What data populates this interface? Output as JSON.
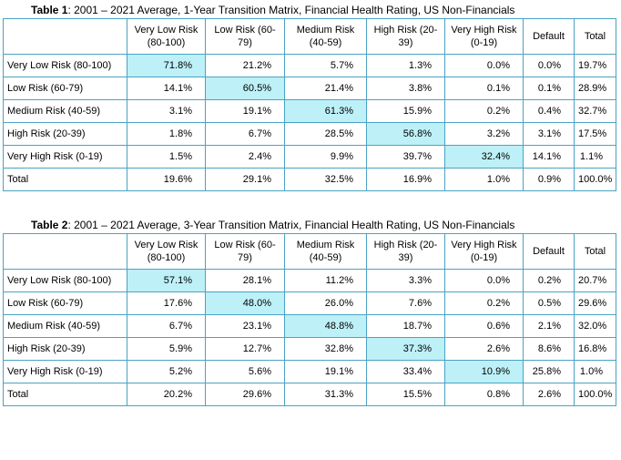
{
  "tables": [
    {
      "caption_prefix": "Table 1",
      "caption_text": ": 2001 – 2021 Average, 1-Year Transition Matrix, Financial Health Rating, US Non-Financials",
      "columns": [
        "",
        "Very Low Risk (80-100)",
        "Low Risk (60-79)",
        "Medium Risk (40-59)",
        "High Risk (20-39)",
        "Very High Risk (0-19)",
        "Default",
        "Total"
      ],
      "rows": [
        [
          "Very Low Risk (80-100)",
          "71.8%",
          "21.2%",
          "5.7%",
          "1.3%",
          "0.0%",
          "0.0%",
          "19.7%"
        ],
        [
          "Low Risk (60-79)",
          "14.1%",
          "60.5%",
          "21.4%",
          "3.8%",
          "0.1%",
          "0.1%",
          "28.9%"
        ],
        [
          "Medium Risk (40-59)",
          "3.1%",
          "19.1%",
          "61.3%",
          "15.9%",
          "0.2%",
          "0.4%",
          "32.7%"
        ],
        [
          "High Risk (20-39)",
          "1.8%",
          "6.7%",
          "28.5%",
          "56.8%",
          "3.2%",
          "3.1%",
          "17.5%"
        ],
        [
          "Very High Risk (0-19)",
          "1.5%",
          "2.4%",
          "9.9%",
          "39.7%",
          "32.4%",
          "14.1%",
          "1.1%"
        ],
        [
          "Total",
          "19.6%",
          "29.1%",
          "32.5%",
          "16.9%",
          "1.0%",
          "0.9%",
          "100.0%"
        ]
      ]
    },
    {
      "caption_prefix": "Table 2",
      "caption_text": ": 2001 – 2021 Average, 3-Year Transition Matrix, Financial Health Rating, US Non-Financials",
      "columns": [
        "",
        "Very Low Risk (80-100)",
        "Low Risk (60-79)",
        "Medium Risk (40-59)",
        "High Risk (20-39)",
        "Very High Risk (0-19)",
        "Default",
        "Total"
      ],
      "rows": [
        [
          "Very Low Risk (80-100)",
          "57.1%",
          "28.1%",
          "11.2%",
          "3.3%",
          "0.0%",
          "0.2%",
          "20.7%"
        ],
        [
          "Low Risk (60-79)",
          "17.6%",
          "48.0%",
          "26.0%",
          "7.6%",
          "0.2%",
          "0.5%",
          "29.6%"
        ],
        [
          "Medium Risk (40-59)",
          "6.7%",
          "23.1%",
          "48.8%",
          "18.7%",
          "0.6%",
          "2.1%",
          "32.0%"
        ],
        [
          "High Risk (20-39)",
          "5.9%",
          "12.7%",
          "32.8%",
          "37.3%",
          "2.6%",
          "8.6%",
          "16.8%"
        ],
        [
          "Very High Risk (0-19)",
          "5.2%",
          "5.6%",
          "19.1%",
          "33.4%",
          "10.9%",
          "25.8%",
          "1.0%"
        ],
        [
          "Total",
          "20.2%",
          "29.6%",
          "31.3%",
          "15.5%",
          "0.8%",
          "2.6%",
          "100.0%"
        ]
      ]
    }
  ],
  "highlight_color": "#bdf0f7",
  "border_color": "#4aa3c4"
}
